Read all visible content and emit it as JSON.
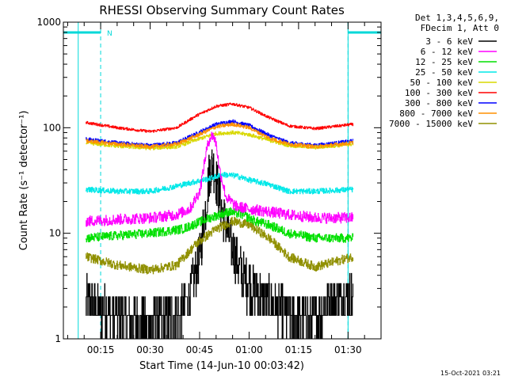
{
  "chart_data": {
    "type": "line",
    "title": "RHESSI Observing Summary Count Rates",
    "xlabel": "Start Time (14-Jun-10 00:03:42)",
    "ylabel": "Count Rate (s⁻¹ detector⁻¹)",
    "y_scale": "log",
    "ylim": [
      1,
      1000
    ],
    "xlim_minutes": [
      3.7,
      100
    ],
    "y_ticks": [
      "1",
      "10",
      "100",
      "1000"
    ],
    "x_ticks": [
      {
        "label": "00:15",
        "minute": 15
      },
      {
        "label": "00:30",
        "minute": 30
      },
      {
        "label": "00:45",
        "minute": 45
      },
      {
        "label": "01:00",
        "minute": 60
      },
      {
        "label": "01:15",
        "minute": 75
      },
      {
        "label": "01:30",
        "minute": 90
      }
    ],
    "legend_header": [
      "Det 1,3,4,5,6,9,",
      "FDecim 1, Att 0"
    ],
    "legend_position": "right",
    "night_marker_label": "N",
    "night_intervals": [
      {
        "start_minute": 3.7,
        "end_minute": 15
      },
      {
        "start_minute": 90,
        "end_minute": 100
      }
    ],
    "colors": {
      "night": "#00d8d8"
    },
    "data_minutes": [
      10.5,
      91.5
    ],
    "series": [
      {
        "name": "3 - 6 keV",
        "color": "#000000",
        "noise": 0.55,
        "x": [
          10.5,
          20,
          30,
          38,
          42,
          45,
          47,
          48,
          49,
          50,
          52,
          55,
          58,
          62,
          66,
          70,
          75,
          80,
          85,
          91.5
        ],
        "y": [
          2.2,
          1.6,
          1.4,
          1.6,
          2.5,
          6,
          20,
          40,
          45,
          32,
          15,
          7,
          4,
          2.8,
          2.2,
          1.8,
          1.5,
          1.6,
          2.2,
          2.5
        ]
      },
      {
        "name": "6 - 12 keV",
        "color": "#ff00ff",
        "noise": 0.12,
        "x": [
          10.5,
          20,
          30,
          38,
          42,
          45,
          47,
          48,
          49,
          50,
          51,
          53,
          56,
          60,
          66,
          72,
          80,
          85,
          91.5
        ],
        "y": [
          13,
          13.5,
          14,
          15,
          17,
          25,
          60,
          80,
          85,
          70,
          40,
          22,
          18,
          17,
          16,
          15,
          14,
          14,
          14
        ]
      },
      {
        "name": "12 - 25 keV",
        "color": "#00e000",
        "noise": 0.1,
        "x": [
          10.5,
          20,
          30,
          40,
          48,
          54,
          58,
          62,
          66,
          72,
          80,
          91.5
        ],
        "y": [
          9,
          9.5,
          10,
          11,
          14,
          16,
          15,
          13,
          12,
          10,
          9,
          9
        ]
      },
      {
        "name": "25 - 50 keV",
        "color": "#00e8e8",
        "noise": 0.06,
        "x": [
          10.5,
          20,
          30,
          38,
          44,
          48,
          52,
          56,
          60,
          66,
          72,
          80,
          91.5
        ],
        "y": [
          26,
          25,
          25,
          28,
          31,
          33,
          36,
          35,
          32,
          29,
          25,
          25,
          26
        ]
      },
      {
        "name": "50 - 100 keV",
        "color": "#d8d800",
        "noise": 0.04,
        "x": [
          10.5,
          20,
          30,
          38,
          44,
          50,
          55,
          60,
          66,
          72,
          80,
          91.5
        ],
        "y": [
          72,
          67,
          64,
          66,
          77,
          88,
          90,
          86,
          76,
          68,
          65,
          70
        ]
      },
      {
        "name": "100 - 300 keV",
        "color": "#ff0000",
        "noise": 0.03,
        "x": [
          10.5,
          20,
          30,
          38,
          44,
          50,
          55,
          60,
          66,
          72,
          80,
          91.5
        ],
        "y": [
          112,
          100,
          92,
          100,
          130,
          160,
          168,
          155,
          125,
          104,
          98,
          108
        ]
      },
      {
        "name": "300 - 800 keV",
        "color": "#0000ff",
        "noise": 0.04,
        "x": [
          10.5,
          20,
          30,
          38,
          44,
          50,
          55,
          60,
          66,
          72,
          80,
          91.5
        ],
        "y": [
          78,
          72,
          68,
          72,
          88,
          108,
          115,
          105,
          85,
          72,
          68,
          75
        ]
      },
      {
        "name": "800 - 7000 keV",
        "color": "#ff9000",
        "noise": 0.04,
        "x": [
          10.5,
          20,
          30,
          38,
          44,
          50,
          55,
          60,
          66,
          72,
          80,
          91.5
        ],
        "y": [
          75,
          70,
          66,
          70,
          84,
          102,
          108,
          100,
          80,
          70,
          66,
          72
        ]
      },
      {
        "name": "7000 - 15000 keV",
        "color": "#909000",
        "noise": 0.1,
        "x": [
          10.5,
          20,
          30,
          38,
          44,
          50,
          55,
          60,
          66,
          72,
          80,
          91.5
        ],
        "y": [
          6,
          5,
          4.5,
          5,
          8,
          11,
          13,
          12,
          9,
          6,
          4.8,
          6
        ]
      }
    ]
  },
  "footer_timestamp": "15-Oct-2021 03:21"
}
